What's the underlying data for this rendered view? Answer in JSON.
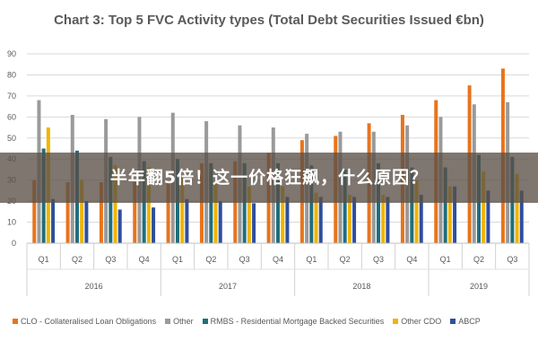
{
  "overlay": {
    "text": "半年翻5倍！这一价格狂飙，什么原因？"
  },
  "chart_data": {
    "type": "bar",
    "title": "Chart 3: Top 5 FVC Activity types (Total Debt Securities Issued €bn)",
    "xlabel": "",
    "ylabel": "",
    "ylim": [
      0,
      90
    ],
    "yticks": [
      0,
      10,
      20,
      30,
      40,
      50,
      60,
      70,
      80,
      90
    ],
    "grid": true,
    "legend_position": "bottom",
    "categories": [
      "Q1",
      "Q2",
      "Q3",
      "Q4",
      "Q1",
      "Q2",
      "Q3",
      "Q4",
      "Q1",
      "Q2",
      "Q3",
      "Q4",
      "Q1",
      "Q2",
      "Q3"
    ],
    "groups": [
      {
        "label": "2016",
        "count": 4
      },
      {
        "label": "2017",
        "count": 4
      },
      {
        "label": "2018",
        "count": 4
      },
      {
        "label": "2019",
        "count": 3
      }
    ],
    "series": [
      {
        "name": "CLO - Collateralised Loan Obligations",
        "color": "#e8741c",
        "values": [
          30,
          29,
          29,
          29,
          29,
          38,
          39,
          43,
          49,
          51,
          57,
          61,
          68,
          75,
          83
        ]
      },
      {
        "name": "Other",
        "color": "#9a9a9a",
        "values": [
          68,
          61,
          59,
          60,
          62,
          58,
          56,
          55,
          52,
          53,
          53,
          56,
          60,
          66,
          67
        ]
      },
      {
        "name": "RMBS - Residential Mortgage Backed Securities",
        "color": "#1f6e7e",
        "values": [
          45,
          44,
          41,
          39,
          40,
          38,
          38,
          38,
          37,
          35,
          38,
          36,
          36,
          42,
          41
        ]
      },
      {
        "name": "Other CDO",
        "color": "#f2b400",
        "values": [
          55,
          30,
          37,
          36,
          32,
          28,
          27,
          27,
          24,
          23,
          23,
          30,
          27,
          34,
          33
        ]
      },
      {
        "name": "ABCP",
        "color": "#2e4f9e",
        "values": [
          21,
          20,
          16,
          17,
          21,
          20,
          19,
          22,
          22,
          22,
          22,
          23,
          27,
          25,
          25
        ]
      }
    ]
  }
}
